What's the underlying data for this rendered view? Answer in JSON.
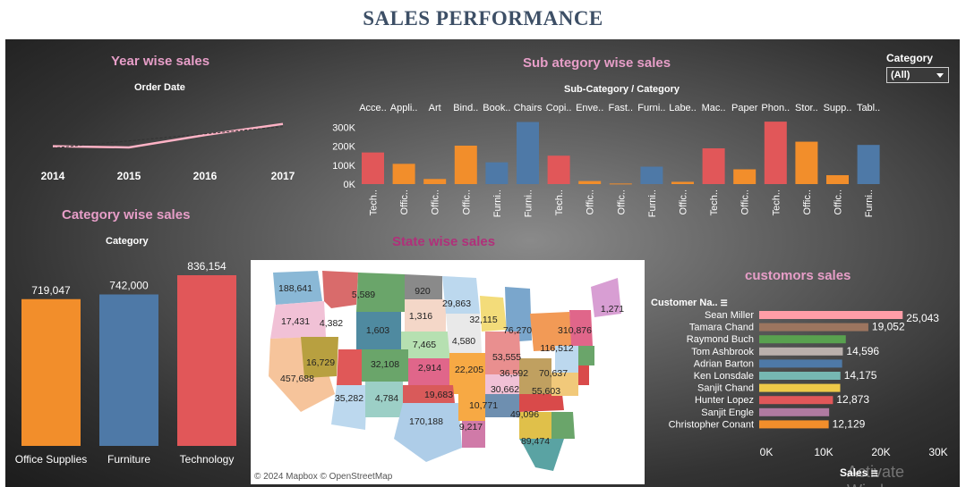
{
  "title": "SALES PERFORMANCE",
  "year_section": {
    "title": "Year wise sales",
    "subtitle": "Order Date",
    "years": [
      "2014",
      "2015",
      "2016",
      "2017"
    ],
    "values": [
      484247,
      470533,
      609206,
      733215
    ]
  },
  "subcat_section": {
    "title": "Sub ategory wise sales",
    "subtitle": "Sub-Category / Category",
    "header_labels": [
      "Acce..",
      "Appli..",
      "Art",
      "Bind..",
      "Book..",
      "Chairs",
      "Copi..",
      "Enve..",
      "Fast..",
      "Furni..",
      "Labe..",
      "Mac..",
      "Paper",
      "Phon..",
      "Stor..",
      "Supp..",
      "Tabl.."
    ],
    "category_labels": [
      "Tech..",
      "Offic..",
      "Offic..",
      "Offic..",
      "Furni..",
      "Furni..",
      "Tech..",
      "Offic..",
      "Offic..",
      "Furni..",
      "Offic..",
      "Tech..",
      "Offic..",
      "Tech..",
      "Offic..",
      "Offic..",
      "Furni.."
    ],
    "y_ticks": [
      "300K",
      "200K",
      "100K",
      "0K"
    ]
  },
  "category_filter": {
    "label": "Category",
    "value": "(All)"
  },
  "category_section": {
    "title": "Category wise sales",
    "subtitle": "Category"
  },
  "state_section": {
    "title": "State wise sales",
    "attribution": "© 2024 Mapbox  © OpenStreetMap"
  },
  "customer_section": {
    "title": "customors sales",
    "column_header": "Customer Na..",
    "axis_label": "Sales",
    "x_ticks": [
      "0K",
      "10K",
      "20K",
      "30K"
    ],
    "watermark": "Activate Window"
  },
  "colors": {
    "blue": "#4e79a7",
    "orange": "#f28e2b",
    "red": "#e15759",
    "pink_title": "#e79ec8",
    "state_title": "#b0307a"
  },
  "chart_data": [
    {
      "type": "line",
      "title": "Year wise sales",
      "xlabel": "Order Date",
      "x": [
        "2014",
        "2015",
        "2016",
        "2017"
      ],
      "values": [
        484247,
        470533,
        609206,
        733215
      ]
    },
    {
      "type": "bar",
      "title": "Sub ategory wise sales",
      "xlabel": "Sub-Category / Category",
      "ylim": [
        0,
        340000
      ],
      "categories": [
        "Acce..",
        "Appli..",
        "Art",
        "Bind..",
        "Book..",
        "Chairs",
        "Copi..",
        "Enve..",
        "Fast..",
        "Furni..",
        "Labe..",
        "Mac..",
        "Paper",
        "Phon..",
        "Stor..",
        "Supp..",
        "Tabl.."
      ],
      "groups": [
        "Tech..",
        "Offic..",
        "Offic..",
        "Offic..",
        "Furni..",
        "Furni..",
        "Tech..",
        "Offic..",
        "Offic..",
        "Furni..",
        "Offic..",
        "Tech..",
        "Offic..",
        "Tech..",
        "Offic..",
        "Offic..",
        "Furni.."
      ],
      "values": [
        167000,
        107000,
        27000,
        203000,
        115000,
        328000,
        150000,
        16000,
        3000,
        92000,
        12000,
        189000,
        78000,
        330000,
        224000,
        47000,
        207000
      ],
      "color_keys": [
        "red",
        "orange",
        "orange",
        "orange",
        "blue",
        "blue",
        "red",
        "orange",
        "orange",
        "blue",
        "orange",
        "red",
        "orange",
        "red",
        "orange",
        "orange",
        "blue"
      ]
    },
    {
      "type": "bar",
      "title": "Category wise sales",
      "xlabel": "Category",
      "categories": [
        "Office Supplies",
        "Furniture",
        "Technology"
      ],
      "values": [
        719047,
        742000,
        836154
      ],
      "value_labels": [
        "719,047",
        "742,000",
        "836,154"
      ],
      "color_keys": [
        "orange",
        "blue",
        "red"
      ],
      "ylim": [
        0,
        836154
      ]
    },
    {
      "type": "bar",
      "orientation": "horizontal",
      "title": "customors sales",
      "xlabel": "Sales",
      "xlim": [
        0,
        30000
      ],
      "categories": [
        "Sean Miller",
        "Tamara Chand",
        "Raymond Buch",
        "Tom Ashbrook",
        "Adrian Barton",
        "Ken Lonsdale",
        "Sanjit Chand",
        "Hunter Lopez",
        "Sanjit Engle",
        "Christopher Conant"
      ],
      "values": [
        25043,
        19052,
        15117,
        14596,
        14474,
        14175,
        14142,
        12873,
        12209,
        12129
      ],
      "value_labels": [
        "25,043",
        "19,052",
        "",
        "14,596",
        "",
        "14,175",
        "",
        "12,873",
        "",
        "12,129"
      ],
      "colors": [
        "#ff9da7",
        "#9c755f",
        "#59a14f",
        "#bab0ac",
        "#4e79a7",
        "#76b7b2",
        "#edc948",
        "#e15759",
        "#b07aa1",
        "#f28e2b"
      ]
    }
  ],
  "map_labels": [
    "188,641",
    "5,589",
    "920",
    "29,863",
    "1,271",
    "17,431",
    "4,382",
    "1,316",
    "32,115",
    "310,876",
    "1,603",
    "7,465",
    "4,580",
    "76,270",
    "116,512",
    "16,729",
    "32,108",
    "2,914",
    "22,205",
    "53,555",
    "457,688",
    "36,592",
    "70,637",
    "35,282",
    "4,784",
    "19,683",
    "30,662",
    "55,603",
    "10,771",
    "49,096",
    "170,188",
    "9,217",
    "89,474"
  ]
}
